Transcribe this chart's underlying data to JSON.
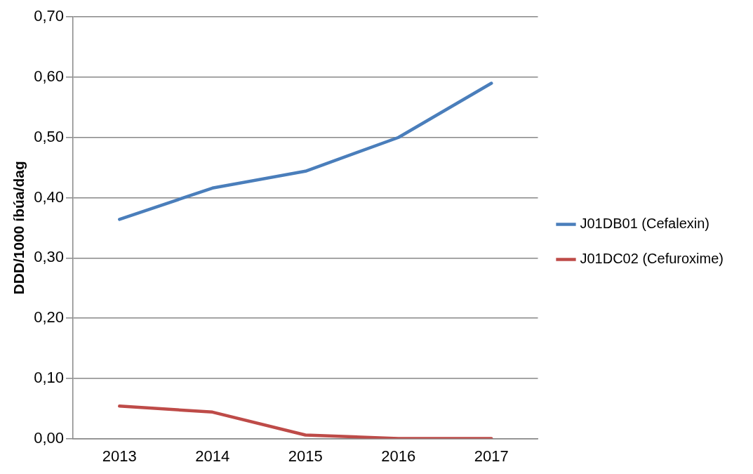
{
  "chart_data": {
    "type": "line",
    "ylabel": "DDD/1000 íbúa/dag",
    "categories": [
      "2013",
      "2014",
      "2015",
      "2016",
      "2017"
    ],
    "series": [
      {
        "name": "J01DB01 (Cefalexin)",
        "color": "#4a7ebb",
        "values": [
          0.364,
          0.416,
          0.444,
          0.5,
          0.59
        ]
      },
      {
        "name": "J01DC02 (Cefuroxime)",
        "color": "#be4b48",
        "values": [
          0.054,
          0.044,
          0.006,
          0.0,
          0.0
        ]
      }
    ],
    "ylim": [
      0,
      0.7
    ],
    "yticks": [
      {
        "value": 0,
        "label": "0,00"
      },
      {
        "value": 0.1,
        "label": "0,10"
      },
      {
        "value": 0.2,
        "label": "0,20"
      },
      {
        "value": 0.3,
        "label": "0,30"
      },
      {
        "value": 0.4,
        "label": "0,40"
      },
      {
        "value": 0.5,
        "label": "0,50"
      },
      {
        "value": 0.6,
        "label": "0,60"
      },
      {
        "value": 0.7,
        "label": "0,70"
      }
    ],
    "grid": "y",
    "legend": "right",
    "marker": "none",
    "line_style": "solid"
  }
}
